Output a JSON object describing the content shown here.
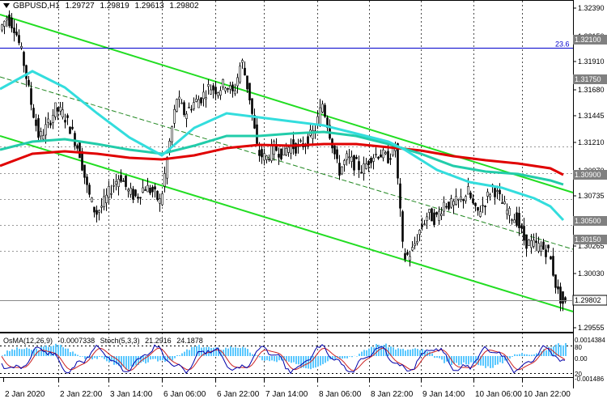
{
  "symbol": "GBPUSD,H1",
  "ohlc": {
    "open": "1.29727",
    "high": "1.29819",
    "low": "1.29613",
    "close": "1.29802"
  },
  "fibo_label": "23.6",
  "price_axis": [
    "1.32390",
    "1.32150",
    "1.31910",
    "1.31680",
    "1.31445",
    "1.31210",
    "1.30970",
    "1.30735",
    "1.30500",
    "1.30265",
    "1.30030",
    "1.29795",
    "1.29555"
  ],
  "level_tags": [
    {
      "value": "1.32100",
      "color": "#808080"
    },
    {
      "value": "1.31750",
      "color": "#808080"
    },
    {
      "value": "1.30900",
      "color": "#808080"
    },
    {
      "value": "1.30500",
      "color": "#808080"
    },
    {
      "value": "1.30150",
      "color": "#808080"
    },
    {
      "value": "1.29802",
      "color": "#ffffff"
    }
  ],
  "time_axis": [
    "2 Jan 2020",
    "2 Jan 22:00",
    "3 Jan 14:00",
    "6 Jan 06:00",
    "6 Jan 22:00",
    "7 Jan 14:00",
    "8 Jan 06:00",
    "8 Jan 22:00",
    "9 Jan 14:00",
    "10 Jan 06:00",
    "10 Jan 22:00"
  ],
  "indicator": {
    "osma": "OsMA(12,26,9)",
    "osma_value": "-0.0007338",
    "stoch": "Stoch(5,3,3)",
    "stoch_main": "21.2916",
    "stoch_signal": "24.1878"
  },
  "indicator_axis": [
    "0.0014384",
    "80",
    "20",
    "-0.001486"
  ],
  "indicator_axis_extra": "0.00",
  "colors": {
    "bull": "#000000",
    "bear": "#000000",
    "ema_red": "#e00000",
    "ema_cyan": "#33dddd",
    "ema_teal": "#22ccaa",
    "channel": "#22dd22",
    "fibo": "#0000cc",
    "osma": "#5bc8ff",
    "stoch_main": "#0000aa",
    "stoch_signal": "#cc2222"
  }
}
